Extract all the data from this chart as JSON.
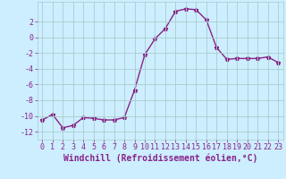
{
  "x": [
    0,
    1,
    2,
    3,
    4,
    5,
    6,
    7,
    8,
    9,
    10,
    11,
    12,
    13,
    14,
    15,
    16,
    17,
    18,
    19,
    20,
    21,
    22,
    23
  ],
  "y": [
    -10.5,
    -9.8,
    -11.5,
    -11.2,
    -10.2,
    -10.3,
    -10.5,
    -10.5,
    -10.2,
    -6.7,
    -2.2,
    -0.2,
    1.1,
    3.3,
    3.6,
    3.5,
    2.2,
    -1.3,
    -2.8,
    -2.7,
    -2.7,
    -2.7,
    -2.5,
    -3.2
  ],
  "line_color": "#882288",
  "marker": "*",
  "marker_size": 3.5,
  "bg_color": "#cceeff",
  "grid_color": "#aacccc",
  "xlabel": "Windchill (Refroidissement éolien,°C)",
  "xlim": [
    -0.5,
    23.5
  ],
  "ylim": [
    -13,
    4.5
  ],
  "yticks": [
    -12,
    -10,
    -8,
    -6,
    -4,
    -2,
    0,
    2
  ],
  "xtick_labels": [
    "0",
    "1",
    "2",
    "3",
    "4",
    "5",
    "6",
    "7",
    "8",
    "9",
    "10",
    "11",
    "12",
    "13",
    "14",
    "15",
    "16",
    "17",
    "18",
    "19",
    "20",
    "21",
    "22",
    "23"
  ],
  "label_color": "#882288",
  "tick_color": "#882288",
  "xlabel_fontsize": 7,
  "tick_fontsize": 6,
  "linewidth": 1.0
}
